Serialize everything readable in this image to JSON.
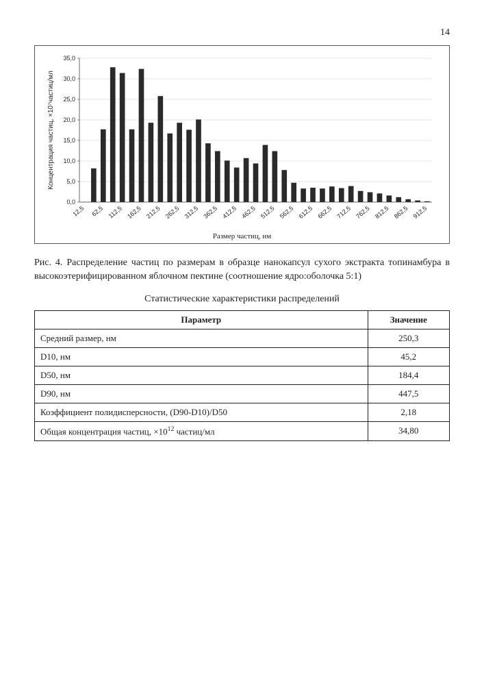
{
  "page_number": "14",
  "chart": {
    "type": "bar",
    "ylabel": "Концентрация частиц, ×10⁷частиц/мл",
    "xlabel": "Размер частиц, нм",
    "ylim": [
      0,
      35
    ],
    "ytick_step": 5,
    "yticks": [
      "0,0",
      "5,0",
      "10,0",
      "15,0",
      "20,0",
      "25,0",
      "30,0",
      "35,0"
    ],
    "xticks": [
      "12,5",
      "62,5",
      "112,5",
      "162,5",
      "212,5",
      "262,5",
      "312,5",
      "362,5",
      "412,5",
      "462,5",
      "512,5",
      "562,5",
      "612,5",
      "662,5",
      "712,5",
      "762,5",
      "812,5",
      "862,5",
      "912,5"
    ],
    "values": [
      0,
      8.2,
      17.7,
      32.8,
      31.4,
      17.7,
      32.4,
      19.3,
      25.8,
      16.7,
      19.3,
      17.6,
      20.1,
      14.3,
      12.4,
      10.1,
      8.4,
      10.7,
      9.4,
      13.9,
      12.4,
      7.8,
      4.7,
      3.3,
      3.5,
      3.3,
      3.8,
      3.4,
      3.9,
      2.7,
      2.4,
      2.1,
      1.6,
      1.2,
      0.7,
      0.4,
      0.2
    ],
    "bar_color": "#2a2a2a",
    "background": "#ffffff",
    "grid_color": "#c8c8c8",
    "axis_color": "#666666",
    "tick_fontsize": 9,
    "label_fontsize": 10,
    "bar_width": 0.55
  },
  "figure_caption": "Рис. 4. Распределение частиц по размерам в образце нанокапсул сухого экстракта топинамбура в высокоэтерифицированном яблочном пектине (соотношение ядро:оболочка 5:1)",
  "table_title": "Статистические характеристики распределений",
  "table": {
    "columns": [
      "Параметр",
      "Значение"
    ],
    "rows": [
      [
        "Средний размер, нм",
        "250,3"
      ],
      [
        "D10, нм",
        "45,2"
      ],
      [
        "D50, нм",
        "184,4"
      ],
      [
        "D90, нм",
        "447,5"
      ],
      [
        "Коэффициент полидисперсности, (D90-D10)/D50",
        "2,18"
      ],
      [
        "__SPECIAL_CONC__",
        "34,80"
      ]
    ],
    "special_conc_html": "Общая концентрация частиц, ×10<span class=\"sup\">12</span> частиц/мл"
  }
}
